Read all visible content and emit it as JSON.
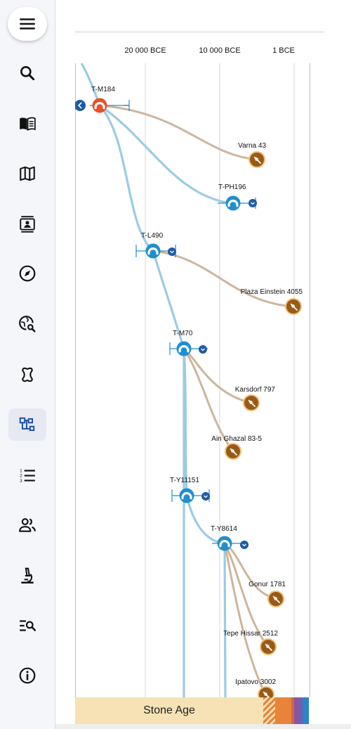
{
  "sidebar": {
    "menu_icon": "hamburger-menu-icon",
    "items": [
      {
        "icon": "search-icon",
        "active": false
      },
      {
        "icon": "open-book-icon",
        "active": false
      },
      {
        "icon": "map-icon",
        "active": false
      },
      {
        "icon": "contact-card-icon",
        "active": false
      },
      {
        "icon": "compass-icon",
        "active": false
      },
      {
        "icon": "globe-search-icon",
        "active": false
      },
      {
        "icon": "bone-icon",
        "active": false
      },
      {
        "icon": "tree-structure-icon",
        "active": true
      },
      {
        "icon": "numbered-list-icon",
        "active": false
      },
      {
        "icon": "people-icon",
        "active": false
      },
      {
        "icon": "microscope-icon",
        "active": false
      },
      {
        "icon": "list-search-icon",
        "active": false
      },
      {
        "icon": "info-icon",
        "active": false
      }
    ]
  },
  "timeline": {
    "axis_labels": [
      "20 000 BCE",
      "10 000 BCE",
      "1 BCE"
    ],
    "haplogroups": [
      {
        "id": "T-M184",
        "root": true
      },
      {
        "id": "T-PH196"
      },
      {
        "id": "T-L490"
      },
      {
        "id": "T-M70"
      },
      {
        "id": "T-Y11151"
      },
      {
        "id": "T-Y8614"
      }
    ],
    "samples": [
      {
        "name": "Varna 43"
      },
      {
        "name": "Plaza Einstein 4055"
      },
      {
        "name": "Karsdorf 797"
      },
      {
        "name": "Ain Ghazal 83-5"
      },
      {
        "name": "Gonur 1781"
      },
      {
        "name": "Tepe Hissar 2512"
      },
      {
        "name": "Ipatovo 3002"
      }
    ],
    "era": "Stone Age"
  },
  "colors": {
    "lineage": "#9ccbe3",
    "sample_line": "#ccb69c",
    "node_blue": "#1f8fcd",
    "node_root": "#e8502a",
    "sample_badge": "#9a5a16",
    "era_stone": "#f6e2b4",
    "era_bronze": "#e8833a",
    "era_iron": "#8a55a0",
    "era_modern": "#2b84c5"
  }
}
